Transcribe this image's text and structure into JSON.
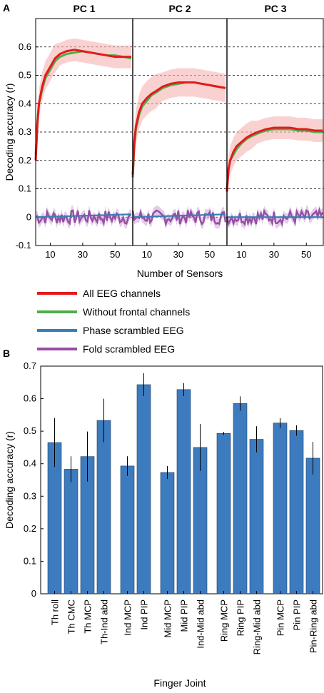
{
  "panel_a_label": "A",
  "panel_b_label": "B",
  "chart_data": [
    {
      "type": "line",
      "panels": [
        "PC 1",
        "PC 2",
        "PC 3"
      ],
      "xlabel": "Number of Sensors",
      "ylabel": "Decoding accuracy (r)",
      "ylim": [
        -0.1,
        0.7
      ],
      "yticks": [
        -0.1,
        0,
        0.1,
        0.2,
        0.3,
        0.4,
        0.5,
        0.6
      ],
      "xlim": [
        1,
        60
      ],
      "xticks": [
        10,
        30,
        50
      ],
      "grid": "horizontal dashed",
      "legend_position": "below",
      "series": [
        {
          "name": "All EEG channels",
          "color": "#e41a1c",
          "x": [
            1,
            2,
            3,
            5,
            7,
            10,
            13,
            16,
            20,
            25,
            30,
            35,
            40,
            45,
            50,
            55,
            60
          ],
          "values": [
            [
              0.2,
              0.32,
              0.4,
              0.46,
              0.5,
              0.53,
              0.56,
              0.575,
              0.585,
              0.59,
              0.585,
              0.58,
              0.575,
              0.57,
              0.565,
              0.565,
              0.565
            ],
            [
              0.15,
              0.26,
              0.32,
              0.37,
              0.4,
              0.42,
              0.435,
              0.445,
              0.46,
              0.47,
              0.475,
              0.475,
              0.475,
              0.47,
              0.465,
              0.46,
              0.455
            ],
            [
              0.09,
              0.17,
              0.2,
              0.23,
              0.25,
              0.265,
              0.28,
              0.29,
              0.3,
              0.31,
              0.315,
              0.315,
              0.315,
              0.31,
              0.31,
              0.305,
              0.305
            ]
          ],
          "band": [
            [
              0.04,
              0.04,
              0.05,
              0.05,
              0.05,
              0.05,
              0.05,
              0.04,
              0.04,
              0.04,
              0.04,
              0.04,
              0.04,
              0.04,
              0.04,
              0.04,
              0.04
            ],
            [
              0.04,
              0.05,
              0.06,
              0.06,
              0.06,
              0.06,
              0.06,
              0.06,
              0.05,
              0.05,
              0.05,
              0.05,
              0.05,
              0.05,
              0.05,
              0.05,
              0.05
            ],
            [
              0.03,
              0.04,
              0.05,
              0.05,
              0.05,
              0.05,
              0.05,
              0.05,
              0.04,
              0.04,
              0.04,
              0.04,
              0.04,
              0.04,
              0.04,
              0.04,
              0.04
            ]
          ]
        },
        {
          "name": "Without frontal channels",
          "color": "#4daf4a",
          "x": [
            1,
            2,
            3,
            5,
            7,
            10,
            13,
            16,
            20,
            25,
            30,
            35,
            40,
            45,
            50,
            55,
            60
          ],
          "values": [
            [
              0.22,
              0.33,
              0.4,
              0.45,
              0.49,
              0.52,
              0.55,
              0.565,
              0.575,
              0.58,
              0.585,
              0.58,
              0.575,
              0.57,
              0.57,
              0.565,
              0.56
            ],
            [
              0.14,
              0.25,
              0.31,
              0.36,
              0.39,
              0.41,
              0.43,
              0.44,
              0.455,
              0.465,
              0.47,
              0.475,
              0.475,
              0.47,
              0.465,
              0.46,
              0.455
            ],
            [
              0.1,
              0.17,
              0.2,
              0.22,
              0.24,
              0.26,
              0.275,
              0.285,
              0.295,
              0.305,
              0.31,
              0.31,
              0.31,
              0.305,
              0.305,
              0.3,
              0.3
            ]
          ]
        },
        {
          "name": "Phase scrambled EEG",
          "color": "#377eb8",
          "x": [
            1,
            60
          ],
          "values": [
            [
              0.0,
              0.01
            ],
            [
              0.0,
              0.01
            ],
            [
              0.0,
              0.0
            ]
          ]
        },
        {
          "name": "Fold scrambled EEG",
          "color": "#984ea3",
          "x": [
            1,
            60
          ],
          "values": [
            [
              0.0,
              0.0
            ],
            [
              0.0,
              0.0
            ],
            [
              0.0,
              0.0
            ]
          ],
          "noise": 0.025
        }
      ]
    },
    {
      "type": "bar",
      "xlabel": "Finger Joint",
      "ylabel": "Decoding accuracy (r)",
      "ylim": [
        0,
        0.7
      ],
      "yticks": [
        0,
        0.1,
        0.2,
        0.3,
        0.4,
        0.5,
        0.6,
        0.7
      ],
      "bar_color": "#3d7bbf",
      "categories": [
        "Th roll",
        "Th CMC",
        "Th MCP",
        "Th-Ind abd",
        "Ind MCP",
        "Ind PIP",
        "Mid MCP",
        "Mid PIP",
        "Ind-Mid abd",
        "Ring MCP",
        "Ring PIP",
        "Ring-Mid abd",
        "Pin MCP",
        "Pin PIP",
        "Pin-Ring abd"
      ],
      "groups": [
        [
          0,
          1,
          2,
          3
        ],
        [
          4,
          5
        ],
        [
          6,
          7,
          8
        ],
        [
          9,
          10,
          11
        ],
        [
          12,
          13,
          14
        ]
      ],
      "values": [
        0.465,
        0.383,
        0.422,
        0.533,
        0.393,
        0.643,
        0.373,
        0.628,
        0.45,
        0.493,
        0.585,
        0.475,
        0.525,
        0.502,
        0.417
      ],
      "errors": [
        0.075,
        0.04,
        0.077,
        0.067,
        0.03,
        0.035,
        0.02,
        0.02,
        0.072,
        0.005,
        0.022,
        0.04,
        0.015,
        0.016,
        0.05
      ]
    }
  ]
}
